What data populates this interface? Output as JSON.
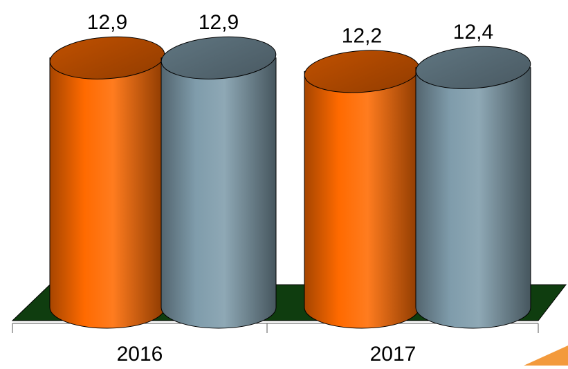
{
  "chart_data": {
    "type": "bar",
    "style": "3d-cylinder",
    "categories": [
      "2016",
      "2017"
    ],
    "series": [
      {
        "color": "#ff6a00",
        "values": [
          12.9,
          12.2
        ]
      },
      {
        "color": "#7f9cab",
        "values": [
          12.9,
          12.4
        ]
      }
    ],
    "value_labels": [
      [
        "12,9",
        "12,2"
      ],
      [
        "12,9",
        "12,4"
      ]
    ],
    "floor_color": "#0f3d0f",
    "y_axis_visible": false,
    "grid": false,
    "legend": "none"
  },
  "decor": {
    "corner_accent_color": "#f39a3c"
  }
}
